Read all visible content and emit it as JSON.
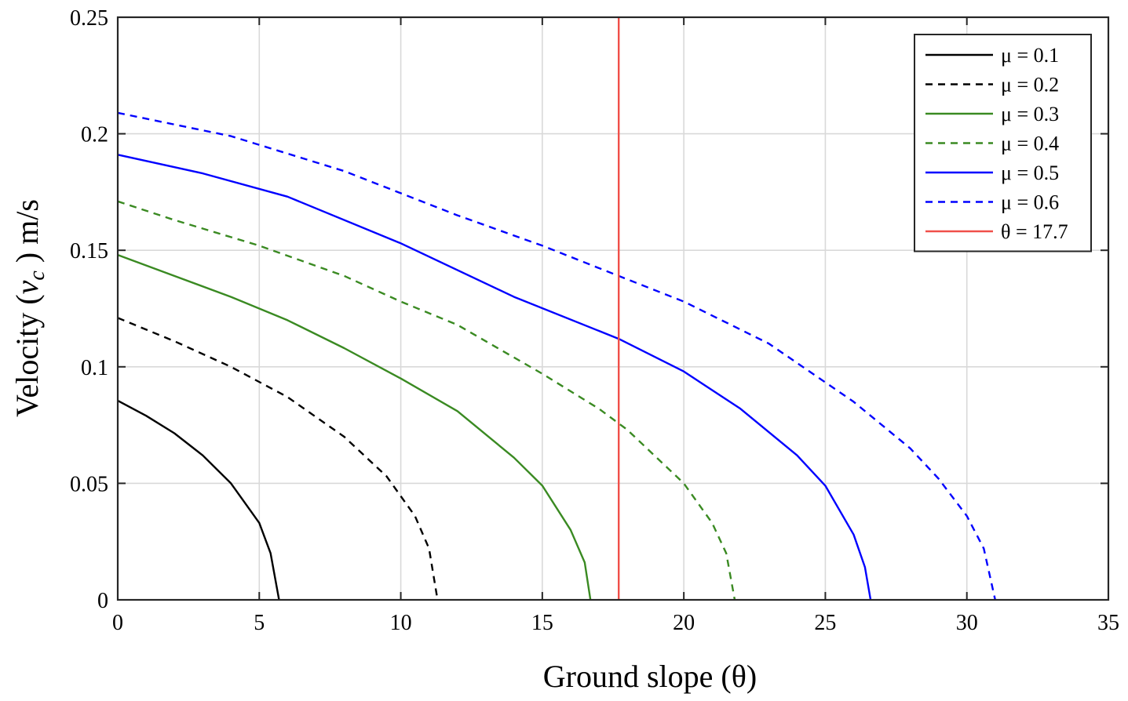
{
  "chart_data": {
    "type": "line",
    "xlabel": "Ground slope (θ)",
    "ylabel_prefix": "Velocity (",
    "ylabel_var": "v",
    "ylabel_sub": "c",
    "ylabel_suffix": " )  m/s",
    "xlim": [
      0,
      35
    ],
    "ylim": [
      0,
      0.25
    ],
    "xticks": [
      0,
      5,
      10,
      15,
      20,
      25,
      30,
      35
    ],
    "xtick_labels": [
      "0",
      "5",
      "10",
      "15",
      "20",
      "25",
      "30",
      "35"
    ],
    "yticks": [
      0,
      0.05,
      0.1,
      0.15,
      0.2,
      0.25
    ],
    "ytick_labels": [
      "0",
      "0.05",
      "0.1",
      "0.15",
      "0.2",
      "0.25"
    ],
    "grid": true,
    "legend_position": "top-right",
    "series": [
      {
        "name": "μ = 0.1",
        "color": "#000000",
        "dash": "solid",
        "x": [
          0,
          1,
          2,
          3,
          4,
          5,
          5.4,
          5.7
        ],
        "y": [
          0.0855,
          0.079,
          0.0715,
          0.062,
          0.05,
          0.033,
          0.02,
          0
        ]
      },
      {
        "name": "μ = 0.2",
        "color": "#000000",
        "dash": "dashed",
        "x": [
          0,
          2,
          4,
          6,
          8,
          9.5,
          10.5,
          11.0,
          11.3
        ],
        "y": [
          0.121,
          0.111,
          0.1,
          0.087,
          0.07,
          0.053,
          0.036,
          0.022,
          0
        ]
      },
      {
        "name": "μ = 0.3",
        "color": "#3a8a22",
        "dash": "solid",
        "x": [
          0,
          2,
          4,
          6,
          8,
          10,
          12,
          14,
          15,
          16,
          16.5,
          16.7
        ],
        "y": [
          0.148,
          0.139,
          0.13,
          0.12,
          0.108,
          0.095,
          0.081,
          0.061,
          0.049,
          0.03,
          0.016,
          0
        ]
      },
      {
        "name": "μ = 0.4",
        "color": "#3a8a22",
        "dash": "dashed",
        "x": [
          0,
          2,
          5,
          8,
          10,
          12,
          15,
          17,
          18,
          20,
          21,
          21.5,
          21.8
        ],
        "y": [
          0.171,
          0.163,
          0.152,
          0.139,
          0.128,
          0.118,
          0.097,
          0.082,
          0.073,
          0.05,
          0.033,
          0.02,
          0
        ]
      },
      {
        "name": "μ = 0.5",
        "color": "#0000ff",
        "dash": "solid",
        "x": [
          0,
          3,
          6,
          10,
          14,
          17.7,
          20,
          22,
          24,
          25,
          26,
          26.4,
          26.6
        ],
        "y": [
          0.191,
          0.183,
          0.173,
          0.153,
          0.13,
          0.112,
          0.098,
          0.082,
          0.062,
          0.049,
          0.028,
          0.014,
          0
        ]
      },
      {
        "name": "μ = 0.6",
        "color": "#0000ff",
        "dash": "dashed",
        "x": [
          0,
          4,
          8,
          12,
          15,
          17.7,
          20,
          23,
          26,
          28,
          29,
          30,
          30.6,
          31
        ],
        "y": [
          0.209,
          0.199,
          0.184,
          0.165,
          0.152,
          0.139,
          0.128,
          0.11,
          0.085,
          0.065,
          0.052,
          0.036,
          0.022,
          0
        ]
      },
      {
        "name": "θ = 17.7",
        "color": "#f0504a",
        "dash": "solid",
        "x": [
          17.7,
          17.7
        ],
        "y": [
          0,
          0.25
        ]
      }
    ]
  }
}
